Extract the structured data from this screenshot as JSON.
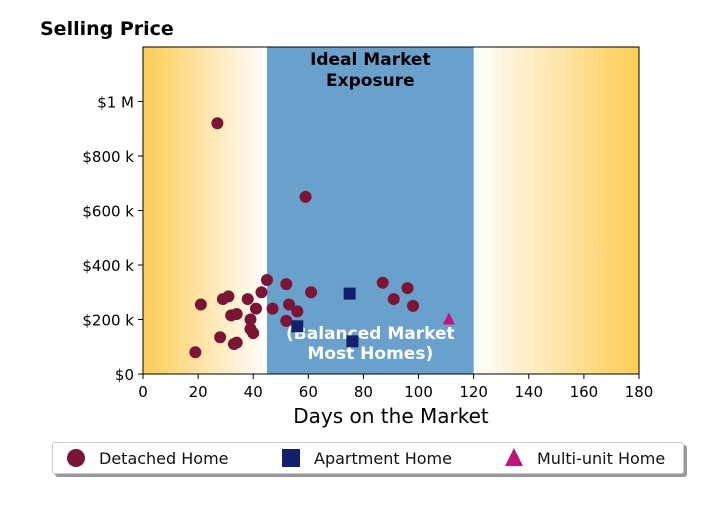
{
  "chart_data": {
    "type": "scatter",
    "title": "Selling Price",
    "xlabel": "Days on the Market",
    "ylabel": "",
    "xlim": [
      0,
      180
    ],
    "ylim": [
      0,
      1200000
    ],
    "x_ticks": [
      0,
      20,
      40,
      60,
      80,
      100,
      120,
      140,
      160,
      180
    ],
    "y_ticks": [
      0,
      200000,
      400000,
      600000,
      800000,
      1000000
    ],
    "y_tick_labels": [
      "$0",
      "$200 k",
      "$400 k",
      "$600 k",
      "$800 k",
      "$1 M"
    ],
    "regions": [
      {
        "label": "Ideal Market Exposure",
        "x_range": [
          45,
          120
        ],
        "color": "#6aa0cc"
      },
      {
        "label": "(Balanced Market\nMost Homes)",
        "x_range": [
          45,
          120
        ]
      }
    ],
    "background_gradient": {
      "edge_color": "#ffcc55",
      "mid_color": "#ffffff"
    },
    "series": [
      {
        "name": "Detached Home",
        "marker": "circle",
        "color": "#7b1535",
        "points": [
          [
            19,
            80000
          ],
          [
            21,
            255000
          ],
          [
            27,
            920000
          ],
          [
            28,
            135000
          ],
          [
            29,
            275000
          ],
          [
            31,
            285000
          ],
          [
            32,
            215000
          ],
          [
            33,
            110000
          ],
          [
            34,
            220000
          ],
          [
            34,
            115000
          ],
          [
            38,
            275000
          ],
          [
            39,
            200000
          ],
          [
            39,
            165000
          ],
          [
            40,
            150000
          ],
          [
            41,
            240000
          ],
          [
            43,
            300000
          ],
          [
            45,
            345000
          ],
          [
            47,
            240000
          ],
          [
            52,
            330000
          ],
          [
            52,
            195000
          ],
          [
            53,
            255000
          ],
          [
            56,
            230000
          ],
          [
            59,
            650000
          ],
          [
            61,
            300000
          ],
          [
            87,
            335000
          ],
          [
            91,
            275000
          ],
          [
            96,
            315000
          ],
          [
            98,
            250000
          ]
        ]
      },
      {
        "name": "Apartment Home",
        "marker": "square",
        "color": "#14206e",
        "points": [
          [
            56,
            175000
          ],
          [
            75,
            295000
          ],
          [
            76,
            120000
          ]
        ]
      },
      {
        "name": "Multi-unit Home",
        "marker": "triangle",
        "color": "#c0147a",
        "points": [
          [
            111,
            200000
          ]
        ]
      }
    ],
    "legend_position": "bottom"
  }
}
